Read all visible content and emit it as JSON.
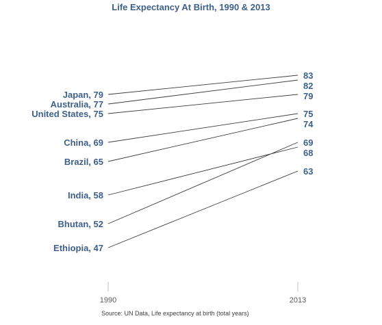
{
  "chart_data": {
    "type": "line",
    "title": "Life Expectancy At Birth, 1990 & 2013",
    "x": [
      "1990",
      "2013"
    ],
    "series": [
      {
        "name": "Japan",
        "values": [
          79,
          83
        ]
      },
      {
        "name": "Australia",
        "values": [
          77,
          82
        ]
      },
      {
        "name": "United States",
        "values": [
          75,
          79
        ]
      },
      {
        "name": "China",
        "values": [
          69,
          75
        ]
      },
      {
        "name": "Brazil",
        "values": [
          65,
          74
        ]
      },
      {
        "name": "India",
        "values": [
          58,
          68
        ]
      },
      {
        "name": "Bhutan",
        "values": [
          52,
          69
        ]
      },
      {
        "name": "Ethiopia",
        "values": [
          47,
          63
        ]
      }
    ],
    "source": "Source:  UN Data, Life expectancy at birth (total years)",
    "colors": {
      "label": "#3e5f8a",
      "line": "#3a3a3a",
      "axis": "#bfbfbf"
    }
  }
}
